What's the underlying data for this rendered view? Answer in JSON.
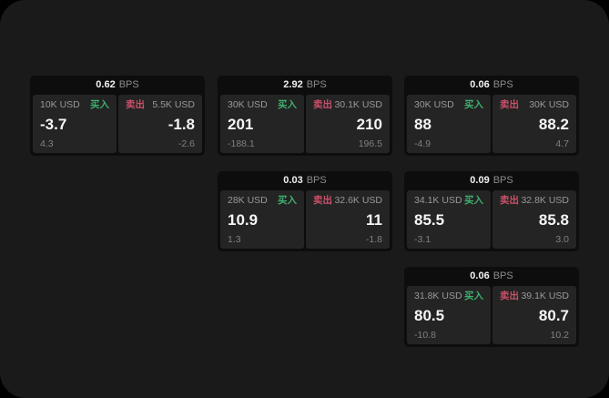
{
  "labels": {
    "buy": "买入",
    "sell": "卖出",
    "bps": "BPS"
  },
  "colors": {
    "backdrop": "#000000",
    "surface": "#1a1a1a",
    "card_bg": "#0d0d0d",
    "panel_bg": "#242424",
    "text_primary": "#f5f5f5",
    "text_secondary": "#999999",
    "text_dim": "#808080",
    "buy_green": "#3fae6e",
    "sell_red": "#c95069"
  },
  "cards": [
    {
      "bps": "0.62",
      "row": 1,
      "col": 1,
      "buy": {
        "amount": "10K USD",
        "value": "-3.7",
        "sub": "4.3"
      },
      "sell": {
        "amount": "5.5K USD",
        "value": "-1.8",
        "sub": "-2.6"
      }
    },
    {
      "bps": "2.92",
      "row": 1,
      "col": 2,
      "buy": {
        "amount": "30K USD",
        "value": "201",
        "sub": "-188.1"
      },
      "sell": {
        "amount": "30.1K USD",
        "value": "210",
        "sub": "196.5"
      }
    },
    {
      "bps": "0.06",
      "row": 1,
      "col": 3,
      "buy": {
        "amount": "30K USD",
        "value": "88",
        "sub": "-4.9"
      },
      "sell": {
        "amount": "30K USD",
        "value": "88.2",
        "sub": "4.7"
      }
    },
    {
      "bps": "0.03",
      "row": 2,
      "col": 2,
      "buy": {
        "amount": "28K USD",
        "value": "10.9",
        "sub": "1.3"
      },
      "sell": {
        "amount": "32.6K USD",
        "value": "11",
        "sub": "-1.8"
      }
    },
    {
      "bps": "0.09",
      "row": 2,
      "col": 3,
      "buy": {
        "amount": "34.1K USD",
        "value": "85.5",
        "sub": "-3.1"
      },
      "sell": {
        "amount": "32.8K USD",
        "value": "85.8",
        "sub": "3.0"
      }
    },
    {
      "bps": "0.06",
      "row": 3,
      "col": 3,
      "buy": {
        "amount": "31.8K USD",
        "value": "80.5",
        "sub": "-10.8"
      },
      "sell": {
        "amount": "39.1K USD",
        "value": "80.7",
        "sub": "10.2"
      }
    }
  ]
}
